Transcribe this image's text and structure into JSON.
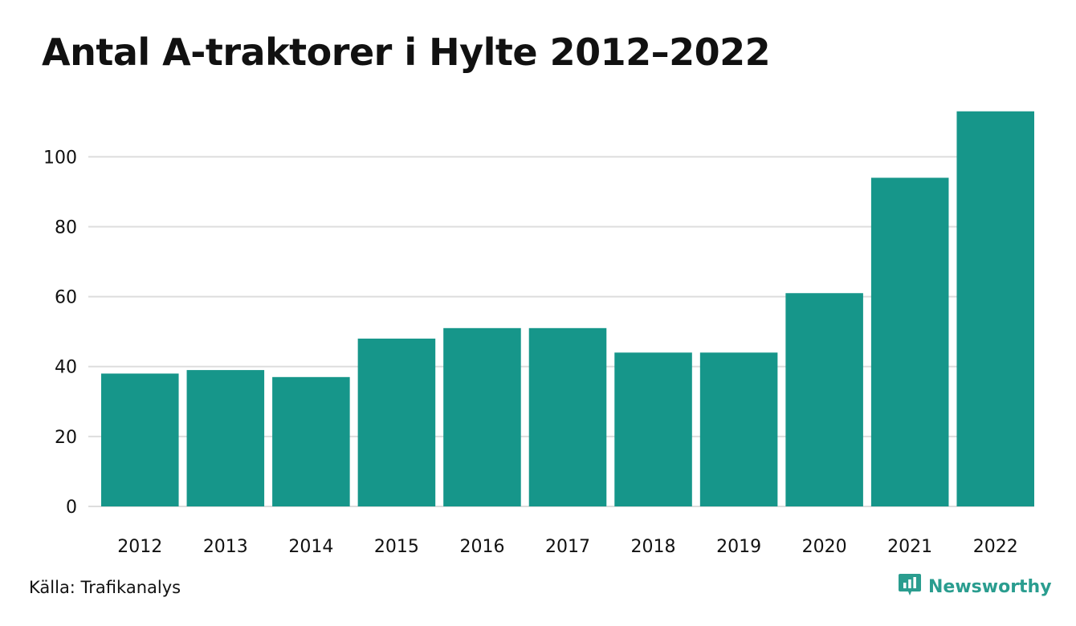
{
  "title": "Antal A-traktorer i Hylte 2012–2022",
  "source": "Källa: Trafikanalys",
  "brand": {
    "name": "Newsworthy",
    "icon": "newsworthy-logo-icon",
    "color": "#2a9d8f"
  },
  "chart_data": {
    "type": "bar",
    "title": "Antal A-traktorer i Hylte 2012–2022",
    "xlabel": "",
    "ylabel": "",
    "categories": [
      "2012",
      "2013",
      "2014",
      "2015",
      "2016",
      "2017",
      "2018",
      "2019",
      "2020",
      "2021",
      "2022"
    ],
    "values": [
      38,
      39,
      37,
      48,
      51,
      51,
      44,
      44,
      61,
      94,
      113
    ],
    "ylim": [
      0,
      115
    ],
    "yticks": [
      0,
      20,
      40,
      60,
      80,
      100
    ],
    "grid": true,
    "legend": "none",
    "bar_color": "#16968a",
    "grid_color": "#dddddd"
  }
}
